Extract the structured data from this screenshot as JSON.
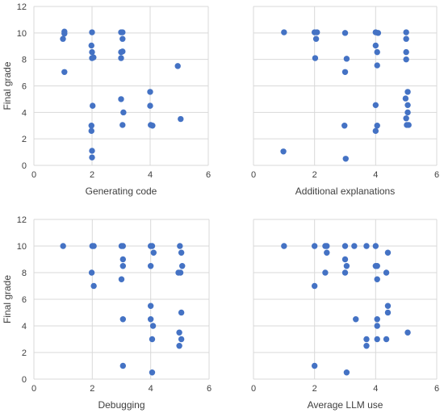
{
  "chart_data": [
    {
      "type": "scatter",
      "xlabel": "Generating code",
      "ylabel": "Final grade",
      "xlim": [
        0,
        6
      ],
      "ylim": [
        0,
        12
      ],
      "xticks": [
        0,
        2,
        4,
        6
      ],
      "yticks": [
        0,
        2,
        4,
        6,
        8,
        10,
        12
      ],
      "grid": "major x and y",
      "color": "#4472C4",
      "points": [
        [
          1.05,
          10.1
        ],
        [
          1.05,
          9.95
        ],
        [
          1.0,
          9.55
        ],
        [
          1.05,
          7.05
        ],
        [
          2.0,
          10.05
        ],
        [
          1.98,
          9.05
        ],
        [
          2.0,
          8.55
        ],
        [
          2.0,
          8.1
        ],
        [
          2.05,
          8.15
        ],
        [
          2.02,
          4.5
        ],
        [
          1.98,
          3.0
        ],
        [
          1.98,
          2.6
        ],
        [
          2.0,
          1.1
        ],
        [
          2.0,
          0.6
        ],
        [
          3.0,
          10.05
        ],
        [
          3.05,
          10.05
        ],
        [
          3.05,
          9.55
        ],
        [
          3.0,
          8.55
        ],
        [
          3.05,
          8.6
        ],
        [
          3.0,
          8.1
        ],
        [
          3.0,
          5.0
        ],
        [
          3.08,
          4.0
        ],
        [
          3.05,
          3.05
        ],
        [
          4.0,
          5.55
        ],
        [
          4.0,
          4.5
        ],
        [
          4.02,
          3.05
        ],
        [
          4.08,
          3.0
        ],
        [
          4.95,
          7.5
        ],
        [
          5.05,
          3.5
        ]
      ]
    },
    {
      "type": "scatter",
      "xlabel": "Additional explanations",
      "ylabel": "",
      "xlim": [
        0,
        6
      ],
      "ylim": [
        0,
        12
      ],
      "xticks": [
        0,
        2,
        4,
        6
      ],
      "grid": "major x and y",
      "color": "#4472C4",
      "points": [
        [
          1.0,
          10.05
        ],
        [
          0.98,
          1.05
        ],
        [
          2.0,
          10.05
        ],
        [
          2.08,
          10.05
        ],
        [
          2.05,
          9.55
        ],
        [
          2.02,
          8.1
        ],
        [
          3.0,
          10.0
        ],
        [
          3.05,
          8.05
        ],
        [
          3.0,
          7.05
        ],
        [
          2.98,
          3.0
        ],
        [
          3.02,
          0.5
        ],
        [
          4.0,
          10.05
        ],
        [
          4.08,
          10.0
        ],
        [
          4.0,
          9.05
        ],
        [
          4.05,
          8.55
        ],
        [
          4.05,
          7.55
        ],
        [
          4.0,
          4.55
        ],
        [
          4.05,
          3.0
        ],
        [
          4.0,
          2.6
        ],
        [
          5.0,
          10.05
        ],
        [
          5.0,
          9.55
        ],
        [
          5.0,
          8.55
        ],
        [
          5.0,
          8.0
        ],
        [
          5.05,
          5.55
        ],
        [
          4.98,
          5.05
        ],
        [
          5.05,
          4.55
        ],
        [
          5.05,
          4.0
        ],
        [
          5.0,
          3.55
        ],
        [
          5.02,
          3.05
        ],
        [
          5.08,
          3.05
        ]
      ]
    },
    {
      "type": "scatter",
      "xlabel": "Debugging",
      "ylabel": "Final grade",
      "xlim": [
        0,
        6
      ],
      "ylim": [
        0,
        12
      ],
      "xticks": [
        0,
        2,
        4,
        6
      ],
      "yticks": [
        0,
        2,
        4,
        6,
        8,
        10,
        12
      ],
      "grid": "major x and y",
      "color": "#4472C4",
      "points": [
        [
          1.0,
          10.0
        ],
        [
          2.0,
          10.0
        ],
        [
          2.05,
          10.0
        ],
        [
          1.98,
          8.0
        ],
        [
          2.05,
          7.0
        ],
        [
          3.0,
          10.0
        ],
        [
          3.05,
          10.0
        ],
        [
          3.05,
          9.0
        ],
        [
          3.05,
          8.5
        ],
        [
          3.0,
          7.5
        ],
        [
          3.05,
          4.5
        ],
        [
          3.05,
          1.0
        ],
        [
          4.0,
          10.0
        ],
        [
          4.05,
          10.0
        ],
        [
          4.1,
          9.5
        ],
        [
          4.0,
          8.5
        ],
        [
          4.0,
          5.5
        ],
        [
          4.0,
          4.5
        ],
        [
          4.08,
          4.0
        ],
        [
          4.05,
          3.0
        ],
        [
          4.05,
          0.5
        ],
        [
          5.0,
          10.0
        ],
        [
          5.05,
          9.5
        ],
        [
          5.08,
          8.5
        ],
        [
          4.95,
          8.0
        ],
        [
          5.02,
          8.0
        ],
        [
          5.05,
          5.0
        ],
        [
          4.98,
          3.5
        ],
        [
          5.05,
          3.0
        ],
        [
          4.98,
          2.5
        ]
      ]
    },
    {
      "type": "scatter",
      "xlabel": "Average LLM use",
      "ylabel": "",
      "xlim": [
        0,
        6
      ],
      "ylim": [
        0,
        12
      ],
      "xticks": [
        0,
        2,
        4,
        6
      ],
      "grid": "major x and y",
      "color": "#4472C4",
      "points": [
        [
          1.0,
          10.0
        ],
        [
          2.0,
          10.0
        ],
        [
          2.35,
          10.0
        ],
        [
          2.4,
          10.0
        ],
        [
          2.4,
          9.5
        ],
        [
          2.35,
          8.0
        ],
        [
          2.0,
          7.0
        ],
        [
          2.0,
          1.0
        ],
        [
          3.0,
          10.0
        ],
        [
          3.3,
          10.0
        ],
        [
          3.7,
          10.0
        ],
        [
          4.0,
          10.0
        ],
        [
          4.4,
          9.5
        ],
        [
          3.0,
          9.0
        ],
        [
          3.05,
          8.5
        ],
        [
          3.0,
          8.0
        ],
        [
          4.0,
          8.5
        ],
        [
          4.05,
          8.5
        ],
        [
          4.35,
          8.0
        ],
        [
          4.05,
          7.5
        ],
        [
          4.4,
          5.5
        ],
        [
          4.4,
          5.0
        ],
        [
          3.35,
          4.5
        ],
        [
          4.05,
          4.5
        ],
        [
          4.05,
          4.0
        ],
        [
          3.7,
          3.0
        ],
        [
          3.7,
          2.5
        ],
        [
          4.05,
          3.0
        ],
        [
          4.35,
          3.0
        ],
        [
          5.05,
          3.5
        ],
        [
          3.05,
          0.5
        ]
      ]
    }
  ]
}
